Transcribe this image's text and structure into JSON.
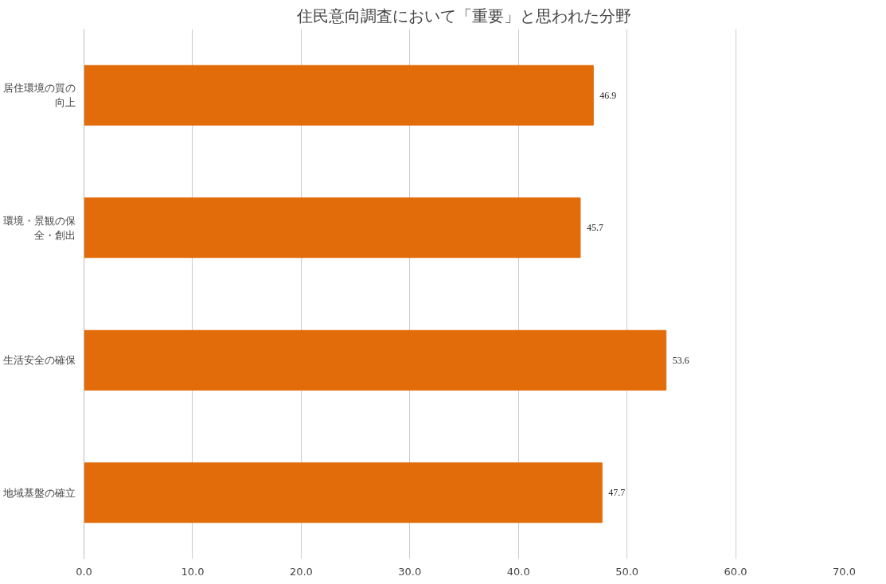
{
  "chart_data": {
    "type": "bar",
    "orientation": "horizontal",
    "title": "住民意向調査において「重要」と思われた分野",
    "categories": [
      "居住環境の質の向上",
      "環境・景観の保全・創出",
      "生活安全の確保",
      "地域基盤の確立"
    ],
    "values": [
      46.9,
      45.7,
      53.6,
      47.7
    ],
    "color": "#e36c0a",
    "xlim": [
      0,
      70
    ],
    "xticks": [
      {
        "value": 0,
        "label": "0.0"
      },
      {
        "value": 10,
        "label": "10.0"
      },
      {
        "value": 20,
        "label": "20.0"
      },
      {
        "value": 30,
        "label": "30.0"
      },
      {
        "value": 40,
        "label": "40.0"
      },
      {
        "value": 50,
        "label": "50.0"
      },
      {
        "value": 60,
        "label": "60.0"
      },
      {
        "value": 70,
        "label": "70.0"
      }
    ],
    "grid": "x",
    "data_labels": true
  }
}
